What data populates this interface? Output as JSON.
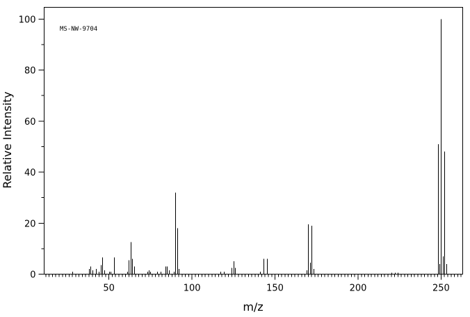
{
  "chart_data": {
    "type": "stem",
    "annotation": "MS-NW-9704",
    "x_label": "m/z",
    "y_label": "Relative Intensity",
    "x": [
      28,
      38,
      39,
      40,
      42,
      44,
      45,
      46,
      47,
      50,
      51,
      53,
      61,
      62,
      63,
      64,
      65,
      73,
      74,
      75,
      79,
      81,
      84,
      85,
      86,
      89,
      90,
      91,
      92,
      117,
      119,
      124,
      125,
      126,
      141,
      143,
      145,
      169,
      170,
      171,
      172,
      173,
      220,
      222,
      224,
      248,
      249,
      250,
      251,
      252,
      253
    ],
    "values": [
      1,
      2,
      3,
      1.5,
      2,
      1,
      3.5,
      6.5,
      1.5,
      1,
      1,
      6.5,
      1,
      5.5,
      12.5,
      6,
      3,
      1,
      1.5,
      1,
      1,
      1,
      3,
      3,
      1.5,
      1,
      32,
      18,
      2,
      1,
      1,
      2.5,
      5,
      2.5,
      1,
      6,
      6,
      1.5,
      19.5,
      4.5,
      19,
      2,
      0.5,
      0.5,
      0.5,
      51,
      4,
      100,
      7,
      48,
      4
    ],
    "color": "#000000",
    "xlim": [
      11,
      263
    ],
    "ylim": [
      0,
      104.6
    ],
    "xticks": [
      50,
      100,
      150,
      200,
      250
    ],
    "yticks": [
      0,
      20,
      40,
      60,
      80,
      100
    ]
  }
}
